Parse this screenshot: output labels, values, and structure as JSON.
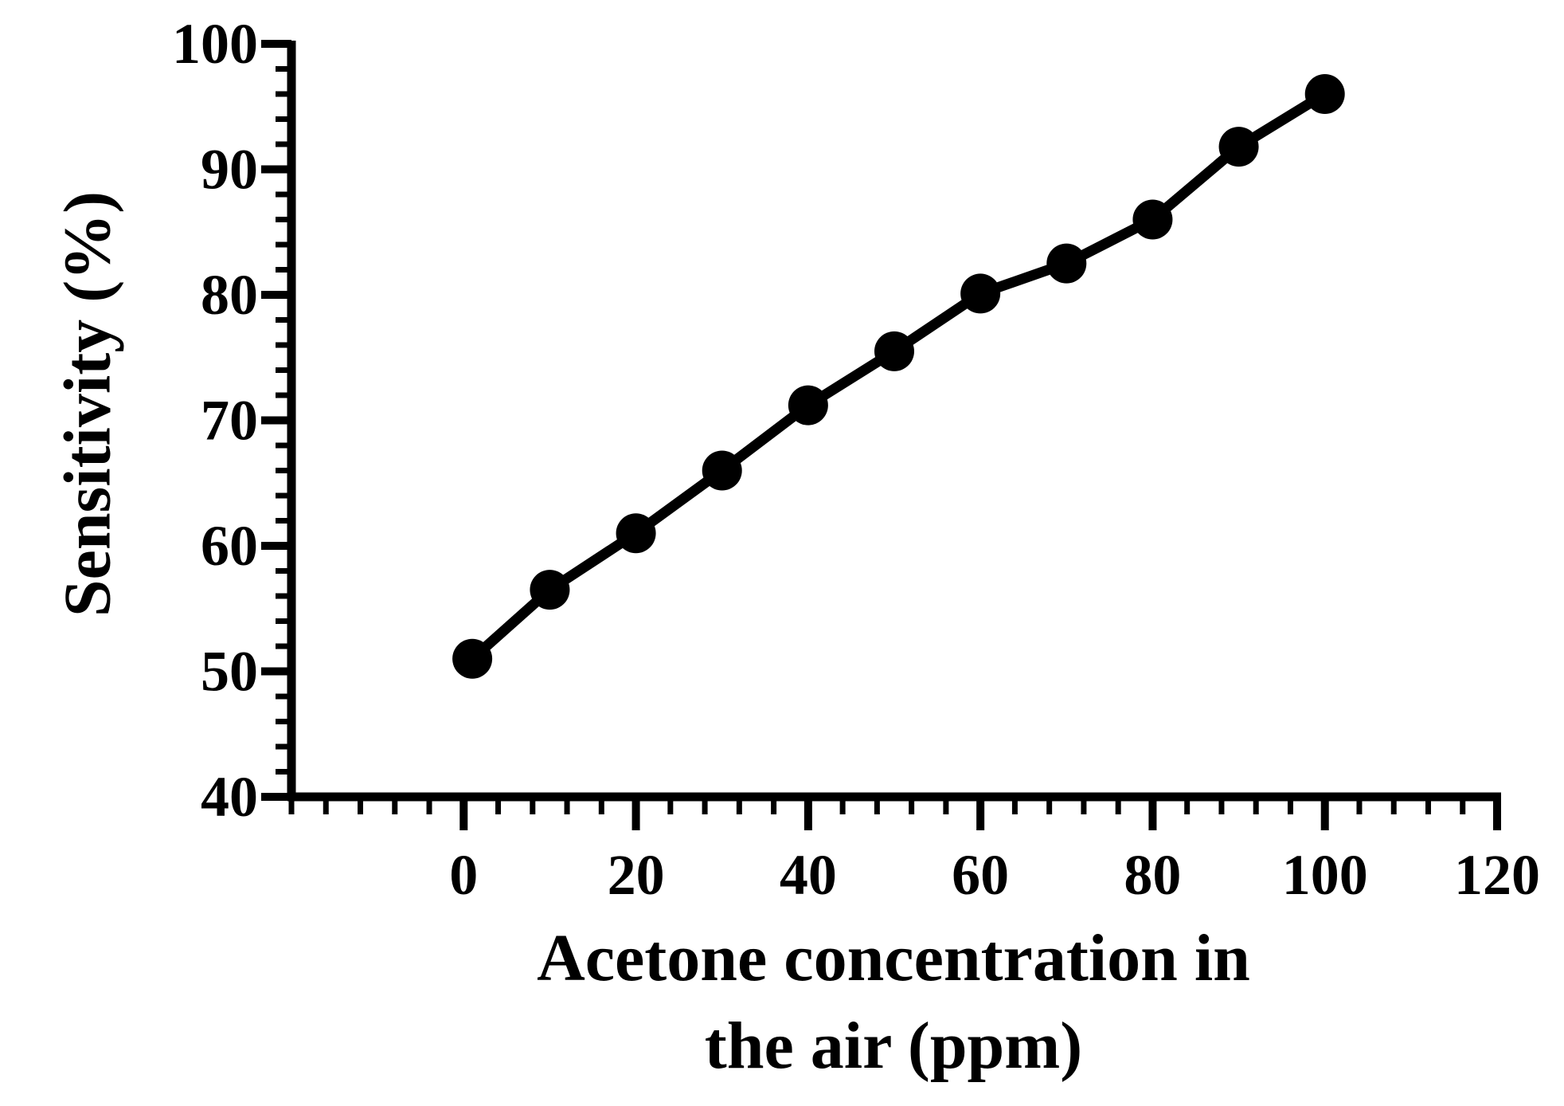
{
  "chart_data": {
    "type": "line",
    "xlabel_lines": [
      "Acetone concentration in",
      "the air (ppm)"
    ],
    "ylabel": "Sensitivity (%)",
    "xlim": [
      -20,
      120
    ],
    "ylim": [
      40,
      100
    ],
    "xticks": [
      0,
      20,
      40,
      60,
      80,
      100,
      120
    ],
    "yticks": [
      40,
      50,
      60,
      70,
      80,
      90,
      100
    ],
    "grid": false,
    "series": [
      {
        "x": [
          1,
          10,
          20,
          30,
          40,
          50,
          60,
          70,
          80,
          90,
          100
        ],
        "y": [
          51,
          56.5,
          61,
          66,
          71.2,
          75.5,
          80.1,
          82.5,
          86,
          91.8,
          96
        ]
      }
    ],
    "colors": {
      "line": "#000000",
      "marker": "#000000",
      "axis": "#000000"
    }
  }
}
